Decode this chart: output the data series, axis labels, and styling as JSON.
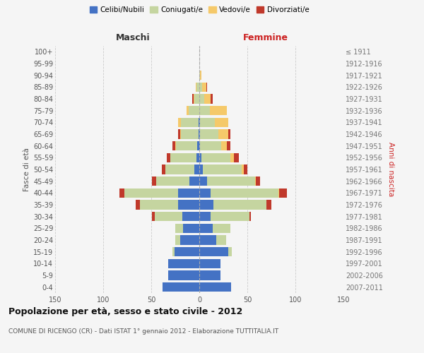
{
  "age_groups": [
    "0-4",
    "5-9",
    "10-14",
    "15-19",
    "20-24",
    "25-29",
    "30-34",
    "35-39",
    "40-44",
    "45-49",
    "50-54",
    "55-59",
    "60-64",
    "65-69",
    "70-74",
    "75-79",
    "80-84",
    "85-89",
    "90-94",
    "95-99",
    "100+"
  ],
  "birth_years": [
    "2007-2011",
    "2002-2006",
    "1997-2001",
    "1992-1996",
    "1987-1991",
    "1982-1986",
    "1977-1981",
    "1972-1976",
    "1967-1971",
    "1962-1966",
    "1957-1961",
    "1952-1956",
    "1947-1951",
    "1942-1946",
    "1937-1941",
    "1932-1936",
    "1927-1931",
    "1922-1926",
    "1917-1921",
    "1912-1916",
    "≤ 1911"
  ],
  "male": {
    "celibi": [
      38,
      32,
      32,
      26,
      20,
      17,
      18,
      22,
      22,
      10,
      5,
      3,
      2,
      1,
      1,
      0,
      0,
      0,
      0,
      0,
      0
    ],
    "coniugati": [
      0,
      0,
      0,
      2,
      5,
      8,
      28,
      40,
      56,
      35,
      30,
      27,
      22,
      18,
      18,
      11,
      5,
      3,
      0,
      0,
      0
    ],
    "vedovi": [
      0,
      0,
      0,
      0,
      0,
      0,
      0,
      0,
      0,
      0,
      0,
      0,
      1,
      1,
      3,
      2,
      1,
      1,
      0,
      0,
      0
    ],
    "divorziati": [
      0,
      0,
      0,
      0,
      0,
      0,
      3,
      4,
      5,
      4,
      4,
      4,
      3,
      2,
      0,
      0,
      1,
      0,
      0,
      0,
      0
    ]
  },
  "female": {
    "nubili": [
      33,
      22,
      22,
      30,
      18,
      14,
      12,
      15,
      12,
      8,
      4,
      2,
      1,
      1,
      1,
      0,
      0,
      0,
      0,
      0,
      0
    ],
    "coniugate": [
      0,
      0,
      0,
      4,
      10,
      18,
      40,
      55,
      70,
      50,
      40,
      30,
      22,
      19,
      15,
      11,
      5,
      3,
      1,
      0,
      0
    ],
    "vedove": [
      0,
      0,
      0,
      0,
      0,
      0,
      0,
      0,
      1,
      1,
      2,
      4,
      6,
      10,
      14,
      18,
      7,
      4,
      1,
      0,
      0
    ],
    "divorziate": [
      0,
      0,
      0,
      0,
      0,
      0,
      2,
      5,
      8,
      4,
      4,
      5,
      3,
      2,
      0,
      0,
      2,
      1,
      0,
      0,
      0
    ]
  },
  "colors": {
    "celibi": "#4472c4",
    "coniugati": "#c5d5a0",
    "vedovi": "#f5c96a",
    "divorziati": "#c0392b"
  },
  "title": "Popolazione per età, sesso e stato civile - 2012",
  "subtitle": "COMUNE DI RICENGO (CR) - Dati ISTAT 1° gennaio 2012 - Elaborazione TUTTITALIA.IT",
  "xlabel_left": "Maschi",
  "xlabel_right": "Femmine",
  "ylabel_left": "Fasce di età",
  "ylabel_right": "Anni di nascita",
  "xlim": 150,
  "background_color": "#f5f5f5",
  "grid_color": "#cccccc"
}
